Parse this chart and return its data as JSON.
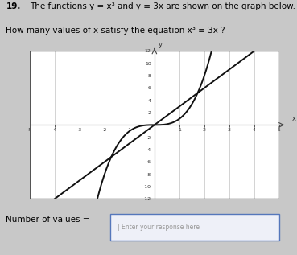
{
  "question_number": "19.",
  "title_line1": "The functions y = x³ and y ≡ 3x are shown on the graph below.",
  "title_line2": "How many values of x satisfy the equation x³ ≡ 3x ?",
  "xlim": [
    -5,
    5
  ],
  "ylim": [
    -12,
    12
  ],
  "x_tick_major": 1,
  "y_tick_major": 2,
  "graph_bg": "#ffffff",
  "line_color": "#111111",
  "fig_bg": "#c8c8c8",
  "answer_label": "Number of values = ",
  "answer_box_placeholder": "Enter your response here"
}
